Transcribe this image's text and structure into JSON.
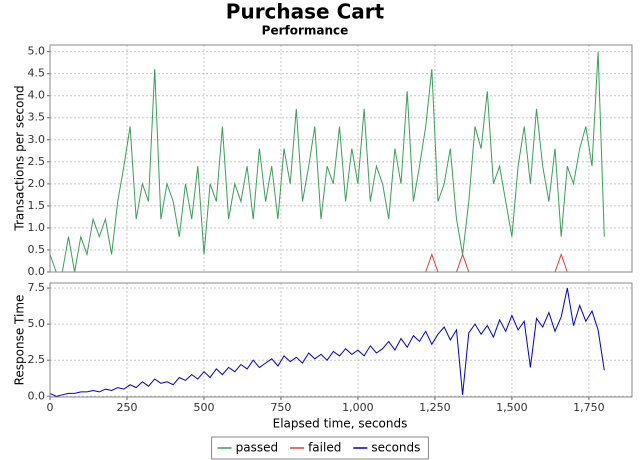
{
  "chart_data": [
    {
      "type": "line",
      "title": "Purchase Cart",
      "subtitle": "Performance",
      "y_label": "Transactions per second",
      "x": [
        0,
        20,
        40,
        60,
        80,
        100,
        120,
        140,
        160,
        180,
        200,
        220,
        240,
        260,
        280,
        300,
        320,
        340,
        360,
        380,
        400,
        420,
        440,
        460,
        480,
        500,
        520,
        540,
        560,
        580,
        600,
        620,
        640,
        660,
        680,
        700,
        720,
        740,
        760,
        780,
        800,
        820,
        840,
        860,
        880,
        900,
        920,
        940,
        960,
        980,
        1000,
        1020,
        1040,
        1060,
        1080,
        1100,
        1120,
        1140,
        1160,
        1180,
        1200,
        1220,
        1240,
        1260,
        1280,
        1300,
        1320,
        1340,
        1360,
        1380,
        1400,
        1420,
        1440,
        1460,
        1480,
        1500,
        1520,
        1540,
        1560,
        1580,
        1600,
        1620,
        1640,
        1660,
        1680,
        1700,
        1720,
        1740,
        1760,
        1780,
        1800
      ],
      "series": [
        {
          "name": "passed",
          "color": "#3a9e5c",
          "values": [
            0.4,
            0,
            0,
            0.8,
            0,
            0.8,
            0.4,
            1.2,
            0.8,
            1.2,
            0.4,
            1.6,
            2.4,
            3.3,
            1.2,
            2.0,
            1.6,
            4.6,
            1.2,
            2.0,
            1.6,
            0.8,
            2.0,
            1.2,
            2.4,
            0.4,
            2.0,
            1.6,
            3.3,
            1.2,
            2.0,
            1.6,
            2.4,
            1.2,
            2.8,
            1.6,
            2.4,
            1.2,
            2.8,
            2.0,
            3.7,
            1.6,
            2.4,
            3.3,
            1.2,
            2.4,
            2.0,
            3.3,
            1.6,
            2.8,
            2.0,
            3.7,
            1.6,
            2.4,
            2.0,
            1.2,
            2.8,
            2.0,
            4.1,
            1.6,
            2.4,
            3.3,
            4.6,
            1.6,
            2.0,
            2.8,
            1.2,
            0.4,
            1.6,
            3.3,
            2.8,
            4.1,
            2.0,
            2.4,
            1.6,
            0.8,
            2.4,
            3.3,
            2.0,
            3.7,
            2.4,
            1.6,
            2.8,
            0.8,
            2.4,
            2.0,
            2.8,
            3.3,
            2.4,
            5.0,
            0.8
          ]
        },
        {
          "name": "failed",
          "color": "#e04040",
          "values": [
            0,
            0,
            0,
            0,
            0,
            0,
            0,
            0,
            0,
            0,
            0,
            0,
            0,
            0,
            0,
            0,
            0,
            0,
            0,
            0,
            0,
            0,
            0,
            0,
            0,
            0,
            0,
            0,
            0,
            0,
            0,
            0,
            0,
            0,
            0,
            0,
            0,
            0,
            0,
            0,
            0,
            0,
            0,
            0,
            0,
            0,
            0,
            0,
            0,
            0,
            0,
            0,
            0,
            0,
            0,
            0,
            0,
            0,
            0,
            0,
            0,
            0,
            0.4,
            0,
            0,
            0,
            0,
            0.4,
            0,
            0,
            0,
            0,
            0,
            0,
            0,
            0,
            0,
            0,
            0,
            0,
            0,
            0,
            0,
            0.4,
            0,
            0,
            0,
            0,
            0,
            0,
            0
          ]
        }
      ],
      "xlim": [
        0,
        1890
      ],
      "ylim": [
        0,
        5.15
      ],
      "yticks": [
        {
          "value": 0,
          "label": "0.0"
        },
        {
          "value": 0.5,
          "label": "0.5"
        },
        {
          "value": 1,
          "label": "1.0"
        },
        {
          "value": 1.5,
          "label": "1.5"
        },
        {
          "value": 2,
          "label": "2.0"
        },
        {
          "value": 2.5,
          "label": "2.5"
        },
        {
          "value": 3,
          "label": "3.0"
        },
        {
          "value": 3.5,
          "label": "3.5"
        },
        {
          "value": 4,
          "label": "4.0"
        },
        {
          "value": 4.5,
          "label": "4.5"
        },
        {
          "value": 5,
          "label": "5.0"
        }
      ],
      "grid": true
    },
    {
      "type": "line",
      "y_label": "Response Time",
      "x_label": "Elapsed time, seconds",
      "x": [
        0,
        20,
        40,
        60,
        80,
        100,
        120,
        140,
        160,
        180,
        200,
        220,
        240,
        260,
        280,
        300,
        320,
        340,
        360,
        380,
        400,
        420,
        440,
        460,
        480,
        500,
        520,
        540,
        560,
        580,
        600,
        620,
        640,
        660,
        680,
        700,
        720,
        740,
        760,
        780,
        800,
        820,
        840,
        860,
        880,
        900,
        920,
        940,
        960,
        980,
        1000,
        1020,
        1040,
        1060,
        1080,
        1100,
        1120,
        1140,
        1160,
        1180,
        1200,
        1220,
        1240,
        1260,
        1280,
        1300,
        1320,
        1340,
        1360,
        1380,
        1400,
        1420,
        1440,
        1460,
        1480,
        1500,
        1520,
        1540,
        1560,
        1580,
        1600,
        1620,
        1640,
        1660,
        1680,
        1700,
        1720,
        1740,
        1760,
        1780,
        1800
      ],
      "series": [
        {
          "name": "seconds",
          "color": "#0000cc",
          "values": [
            0.2,
            0,
            0.1,
            0.2,
            0.2,
            0.3,
            0.3,
            0.4,
            0.3,
            0.5,
            0.4,
            0.6,
            0.5,
            0.8,
            0.6,
            1.0,
            0.7,
            1.2,
            0.9,
            1.0,
            0.8,
            1.3,
            1.1,
            1.5,
            1.2,
            1.7,
            1.3,
            1.9,
            1.5,
            2.0,
            1.7,
            2.2,
            1.9,
            2.5,
            2.0,
            2.3,
            2.6,
            2.1,
            2.8,
            2.4,
            2.7,
            2.3,
            3.0,
            2.6,
            2.9,
            2.5,
            3.1,
            2.8,
            3.3,
            2.9,
            3.2,
            2.8,
            3.5,
            3.0,
            3.3,
            3.8,
            3.2,
            4.0,
            3.4,
            4.2,
            3.8,
            4.5,
            3.6,
            4.3,
            4.8,
            3.9,
            4.6,
            0.1,
            4.4,
            5.0,
            4.3,
            4.9,
            4.1,
            5.3,
            4.5,
            5.6,
            4.6,
            5.2,
            2.0,
            5.4,
            4.8,
            5.8,
            4.5,
            5.5,
            7.5,
            4.9,
            6.3,
            5.2,
            5.9,
            4.6,
            1.8
          ]
        }
      ],
      "xlim": [
        0,
        1890
      ],
      "ylim": [
        -0.05,
        7.85
      ],
      "xticks": [
        0,
        250,
        500,
        750,
        {
          "value": 1000,
          "label": "1,000"
        },
        {
          "value": 1250,
          "label": "1,250"
        },
        {
          "value": 1500,
          "label": "1,500"
        },
        {
          "value": 1750,
          "label": "1,750"
        }
      ],
      "yticks": [
        {
          "value": 0,
          "label": "0.0"
        },
        {
          "value": 2.5,
          "label": "2.5"
        },
        {
          "value": 5,
          "label": "5.0"
        },
        {
          "value": 7.5,
          "label": "7.5"
        }
      ],
      "grid": true
    }
  ]
}
